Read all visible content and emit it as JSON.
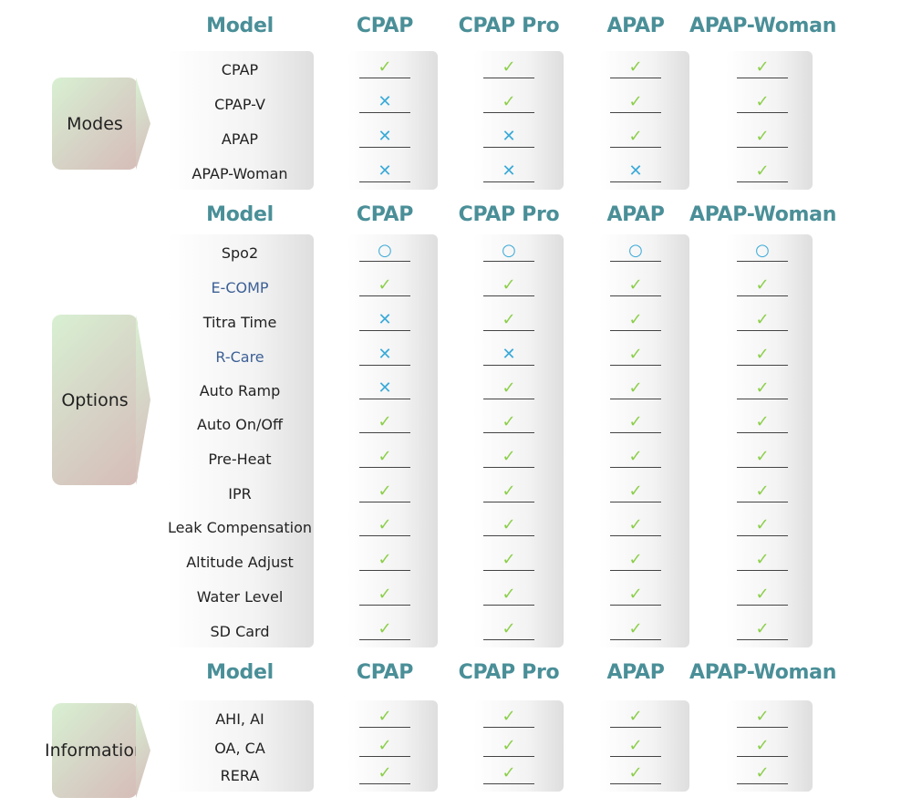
{
  "columns": [
    "Model",
    "CPAP",
    "CPAP Pro",
    "APAP",
    "APAP-Woman"
  ],
  "icons": {
    "check": "check-icon",
    "cross": "cross-icon",
    "circle": "circle-icon"
  },
  "colors": {
    "header": "#4a8f98",
    "check": "#8ccf4a",
    "cross": "#3aaad8",
    "link_label": "#3d6096"
  },
  "sections": [
    {
      "tag": "Modes",
      "rows": [
        {
          "label": "CPAP",
          "values": [
            "check",
            "check",
            "check",
            "check"
          ]
        },
        {
          "label": "CPAP-V",
          "values": [
            "cross",
            "check",
            "check",
            "check"
          ]
        },
        {
          "label": "APAP",
          "values": [
            "cross",
            "cross",
            "check",
            "check"
          ]
        },
        {
          "label": "APAP-Woman",
          "values": [
            "cross",
            "cross",
            "cross",
            "check"
          ]
        }
      ]
    },
    {
      "tag": "Options",
      "rows": [
        {
          "label": "Spo2",
          "values": [
            "circle",
            "circle",
            "circle",
            "circle"
          ]
        },
        {
          "label": "E-COMP",
          "values": [
            "check",
            "check",
            "check",
            "check"
          ]
        },
        {
          "label": "Titra Time",
          "values": [
            "cross",
            "check",
            "check",
            "check"
          ]
        },
        {
          "label": "R-Care",
          "values": [
            "cross",
            "cross",
            "check",
            "check"
          ]
        },
        {
          "label": "Auto Ramp",
          "values": [
            "cross",
            "check",
            "check",
            "check"
          ]
        },
        {
          "label": "Auto On/Off",
          "values": [
            "check",
            "check",
            "check",
            "check"
          ]
        },
        {
          "label": "Pre-Heat",
          "values": [
            "check",
            "check",
            "check",
            "check"
          ]
        },
        {
          "label": "IPR",
          "values": [
            "check",
            "check",
            "check",
            "check"
          ]
        },
        {
          "label": "Leak Compensation",
          "values": [
            "check",
            "check",
            "check",
            "check"
          ]
        },
        {
          "label": "Altitude Adjust",
          "values": [
            "check",
            "check",
            "check",
            "check"
          ]
        },
        {
          "label": "Water Level",
          "values": [
            "check",
            "check",
            "check",
            "check"
          ]
        },
        {
          "label": "SD Card",
          "values": [
            "check",
            "check",
            "check",
            "check"
          ]
        }
      ]
    },
    {
      "tag": "Information",
      "rows": [
        {
          "label": "AHI, AI",
          "values": [
            "check",
            "check",
            "check",
            "check"
          ]
        },
        {
          "label": "OA, CA",
          "values": [
            "check",
            "check",
            "check",
            "check"
          ]
        },
        {
          "label": "RERA",
          "values": [
            "check",
            "check",
            "check",
            "check"
          ]
        }
      ]
    }
  ]
}
